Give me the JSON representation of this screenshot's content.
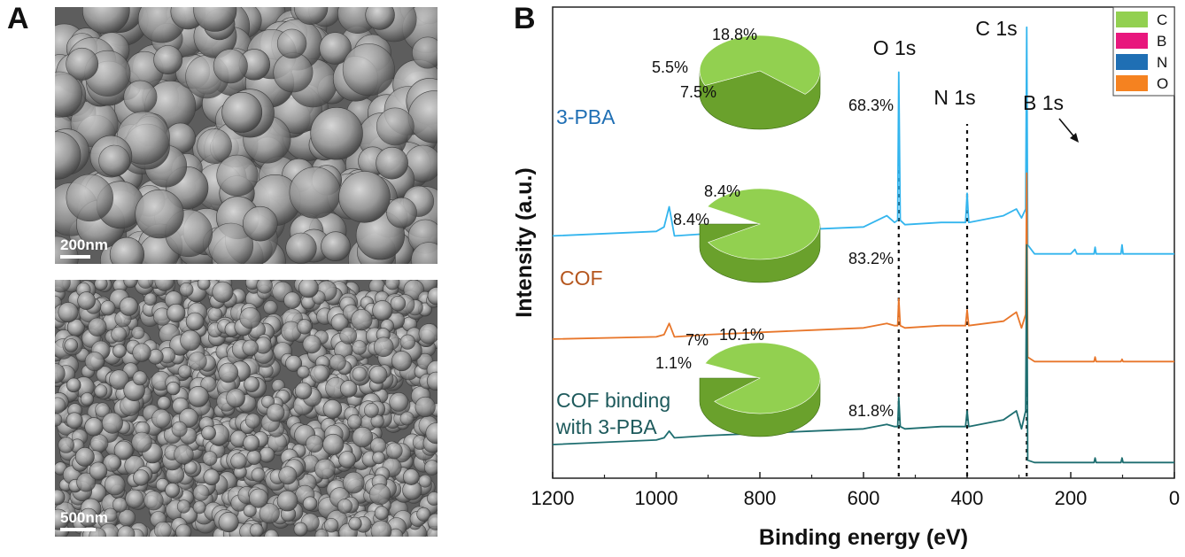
{
  "panels": {
    "a_label": "A",
    "b_label": "B"
  },
  "sem": {
    "top_scale": "200nm",
    "bottom_scale": "500nm"
  },
  "colors": {
    "C": "#92d050",
    "B": "#e8177d",
    "N": "#1f6fb4",
    "O": "#f58220",
    "spec_3pba": "#33b5ee",
    "spec_cof": "#e8762a",
    "spec_binding": "#1e6e70",
    "label_3pba": "#1f6fb4",
    "label_cof": "#b5561e",
    "label_binding": "#1e5a5c"
  },
  "chart_data": {
    "type": "line",
    "xlabel": "Binding energy (eV)",
    "ylabel": "Intensity (a.u.)",
    "xlim": [
      1200,
      0
    ],
    "x_ticks": [
      "1200",
      "1000",
      "800",
      "600",
      "400",
      "200",
      "0"
    ],
    "legend": {
      "placement": "top-right",
      "entries": [
        {
          "label": "C",
          "color": "#92d050"
        },
        {
          "label": "B",
          "color": "#e8177d"
        },
        {
          "label": "N",
          "color": "#1f6fb4"
        },
        {
          "label": "O",
          "color": "#f58220"
        }
      ]
    },
    "peak_labels": [
      {
        "text": "O 1s",
        "x": 532
      },
      {
        "text": "N 1s",
        "x": 400
      },
      {
        "text": "C 1s",
        "x": 285
      },
      {
        "text": "B 1s",
        "x": 190
      }
    ],
    "dotted_lines_x": [
      532,
      400,
      285
    ],
    "series": [
      {
        "name": "3-PBA",
        "points": [
          [
            1200,
            0.68
          ],
          [
            1000,
            0.7
          ],
          [
            985,
            0.72
          ],
          [
            975,
            0.81
          ],
          [
            965,
            0.68
          ],
          [
            900,
            0.69
          ],
          [
            800,
            0.71
          ],
          [
            700,
            0.71
          ],
          [
            600,
            0.72
          ],
          [
            555,
            0.77
          ],
          [
            540,
            0.74
          ],
          [
            534,
            0.75
          ],
          [
            532,
            1.41
          ],
          [
            529,
            0.75
          ],
          [
            520,
            0.73
          ],
          [
            450,
            0.74
          ],
          [
            403,
            0.74
          ],
          [
            400,
            0.87
          ],
          [
            397,
            0.74
          ],
          [
            330,
            0.77
          ],
          [
            305,
            0.8
          ],
          [
            295,
            0.76
          ],
          [
            287,
            0.8
          ],
          [
            285,
            1.61
          ],
          [
            283,
            0.64
          ],
          [
            270,
            0.6
          ],
          [
            200,
            0.6
          ],
          [
            192,
            0.62
          ],
          [
            188,
            0.6
          ],
          [
            155,
            0.6
          ],
          [
            153,
            0.63
          ],
          [
            151,
            0.6
          ],
          [
            103,
            0.6
          ],
          [
            101,
            0.64
          ],
          [
            99,
            0.6
          ],
          [
            0,
            0.6
          ]
        ]
      },
      {
        "name": "COF",
        "points": [
          [
            1200,
            0.22
          ],
          [
            1000,
            0.23
          ],
          [
            985,
            0.24
          ],
          [
            975,
            0.29
          ],
          [
            965,
            0.23
          ],
          [
            900,
            0.24
          ],
          [
            800,
            0.25
          ],
          [
            700,
            0.26
          ],
          [
            600,
            0.27
          ],
          [
            555,
            0.29
          ],
          [
            540,
            0.28
          ],
          [
            534,
            0.28
          ],
          [
            532,
            0.4
          ],
          [
            529,
            0.28
          ],
          [
            520,
            0.27
          ],
          [
            450,
            0.28
          ],
          [
            403,
            0.28
          ],
          [
            400,
            0.35
          ],
          [
            397,
            0.28
          ],
          [
            330,
            0.3
          ],
          [
            305,
            0.34
          ],
          [
            295,
            0.27
          ],
          [
            287,
            0.33
          ],
          [
            285,
            0.96
          ],
          [
            283,
            0.14
          ],
          [
            270,
            0.12
          ],
          [
            155,
            0.12
          ],
          [
            153,
            0.14
          ],
          [
            151,
            0.12
          ],
          [
            103,
            0.12
          ],
          [
            101,
            0.13
          ],
          [
            99,
            0.12
          ],
          [
            0,
            0.12
          ]
        ]
      },
      {
        "name": "COF binding with 3-PBA",
        "points": [
          [
            1200,
            -0.25
          ],
          [
            1000,
            -0.23
          ],
          [
            985,
            -0.22
          ],
          [
            975,
            -0.19
          ],
          [
            965,
            -0.22
          ],
          [
            900,
            -0.21
          ],
          [
            800,
            -0.2
          ],
          [
            700,
            -0.19
          ],
          [
            600,
            -0.18
          ],
          [
            555,
            -0.16
          ],
          [
            540,
            -0.17
          ],
          [
            534,
            -0.17
          ],
          [
            532,
            -0.04
          ],
          [
            529,
            -0.17
          ],
          [
            520,
            -0.18
          ],
          [
            450,
            -0.17
          ],
          [
            403,
            -0.17
          ],
          [
            400,
            -0.1
          ],
          [
            397,
            -0.17
          ],
          [
            330,
            -0.14
          ],
          [
            305,
            -0.1
          ],
          [
            295,
            -0.18
          ],
          [
            287,
            -0.1
          ],
          [
            285,
            0.64
          ],
          [
            283,
            -0.32
          ],
          [
            270,
            -0.33
          ],
          [
            155,
            -0.33
          ],
          [
            153,
            -0.31
          ],
          [
            151,
            -0.33
          ],
          [
            103,
            -0.33
          ],
          [
            101,
            -0.31
          ],
          [
            99,
            -0.33
          ],
          [
            0,
            -0.33
          ]
        ]
      }
    ],
    "series_labels": [
      {
        "lines": [
          "3-PBA"
        ]
      },
      {
        "lines": [
          "COF"
        ]
      },
      {
        "lines": [
          "COF binding",
          "with 3-PBA"
        ]
      }
    ],
    "pies": [
      {
        "for": "3-PBA",
        "slices": [
          {
            "label": "C",
            "value": 68.3
          },
          {
            "label": "B",
            "value": 7.5
          },
          {
            "label": "N",
            "value": 5.5
          },
          {
            "label": "O",
            "value": 18.8
          }
        ],
        "value_labels": [
          "68.3%",
          "7.5%",
          "5.5%",
          "18.8%"
        ]
      },
      {
        "for": "COF",
        "slices": [
          {
            "label": "C",
            "value": 83.2
          },
          {
            "label": "B",
            "value": 0
          },
          {
            "label": "N",
            "value": 8.4
          },
          {
            "label": "O",
            "value": 8.4
          }
        ],
        "value_labels": [
          "83.2%",
          "8.4%",
          "8.4%"
        ]
      },
      {
        "for": "COF binding with 3-PBA",
        "slices": [
          {
            "label": "C",
            "value": 81.8
          },
          {
            "label": "B",
            "value": 1.1
          },
          {
            "label": "N",
            "value": 7
          },
          {
            "label": "O",
            "value": 10.1
          }
        ],
        "value_labels": [
          "81.8%",
          "1.1%",
          "7%",
          "10.1%"
        ]
      }
    ]
  }
}
